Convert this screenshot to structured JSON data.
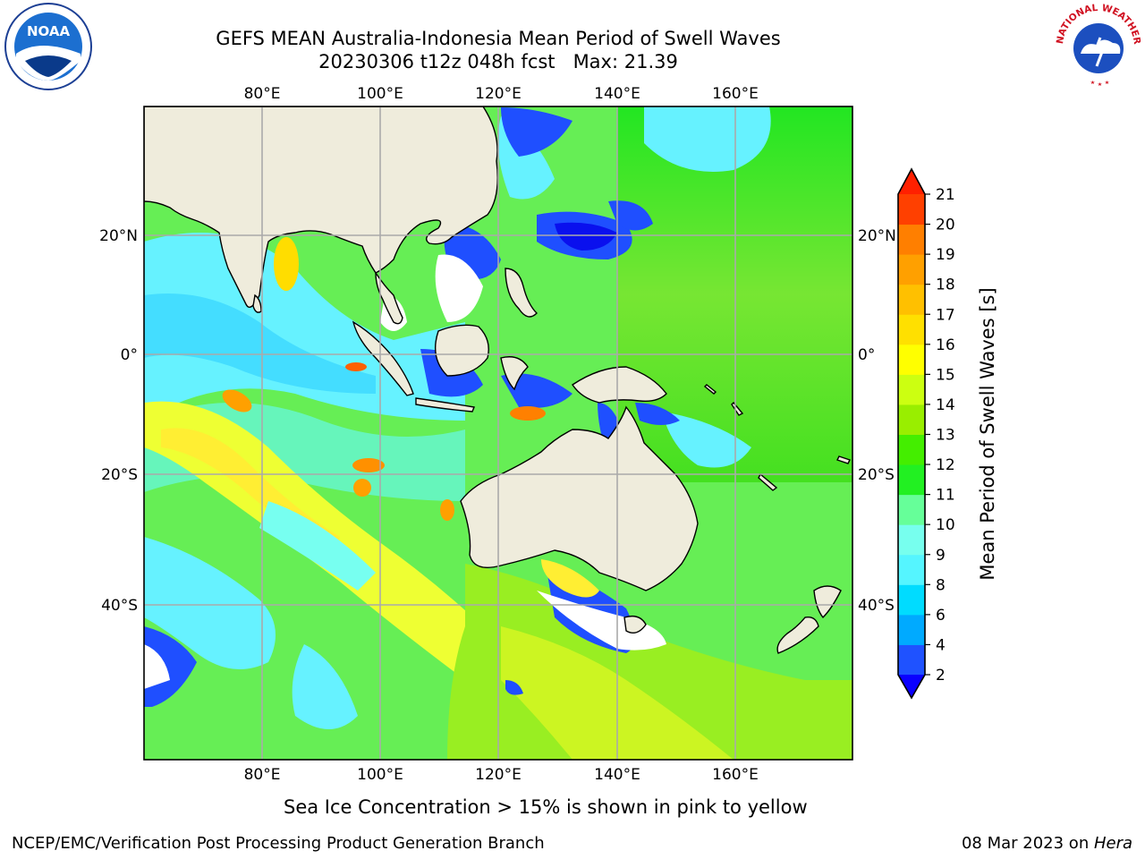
{
  "title": {
    "line1": "GEFS MEAN Australia-Indonesia Mean Period of Swell Waves",
    "line2": "20230306 t12z 048h fcst   Max: 21.39"
  },
  "map": {
    "lon_labels": [
      "80°E",
      "100°E",
      "120°E",
      "140°E",
      "160°E"
    ],
    "lat_labels_left": [
      "20°N",
      "0°",
      "20°S",
      "40°S"
    ],
    "lat_labels_right": [
      "20°N",
      "0°",
      "20°S",
      "40°S"
    ],
    "land_color": "#efecdc",
    "grid_color": "#aaaaaa"
  },
  "colorbar": {
    "label": "Mean Period of Swell Waves [s]",
    "ticks": [
      "2",
      "4",
      "6",
      "8",
      "9",
      "10",
      "11",
      "12",
      "13",
      "14",
      "15",
      "16",
      "17",
      "18",
      "19",
      "20",
      "21"
    ],
    "colors": [
      "#1f52ff",
      "#00aaff",
      "#00dcff",
      "#55f5ff",
      "#77ffee",
      "#66ff99",
      "#22f022",
      "#44ee00",
      "#99ee00",
      "#ccff11",
      "#ffff00",
      "#ffe000",
      "#ffc000",
      "#ffa000",
      "#ff7f00",
      "#ff4000"
    ],
    "under_color": "#0a00ff",
    "over_color": "#ff2000"
  },
  "logos": {
    "noaa": "NOAA",
    "nws_text": "NATIONAL WEATHER SERVICE"
  },
  "footer": {
    "note": "Sea Ice Concentration > 15% is shown in pink to yellow",
    "left_credit": "NCEP/EMC/Verification Post Processing Product Generation Branch",
    "right_credit_date": "08 Mar 2023 on ",
    "right_credit_machine": "Hera"
  }
}
